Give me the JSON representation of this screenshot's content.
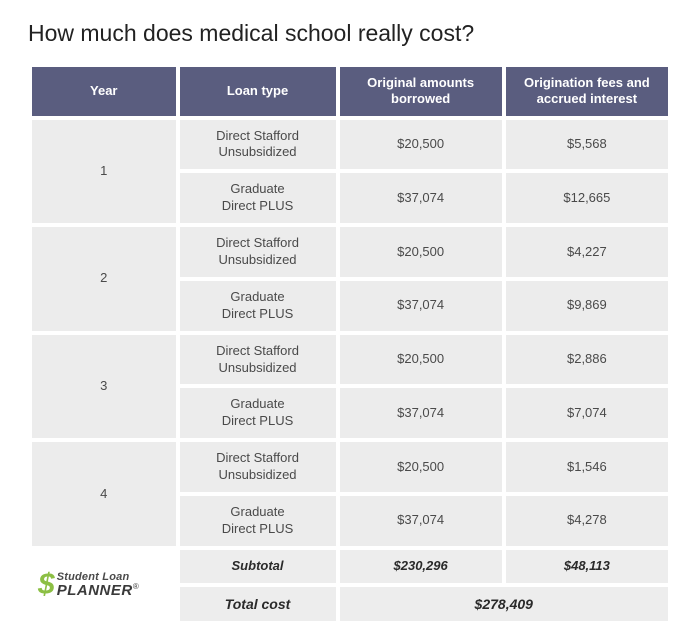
{
  "title": "How much does medical school really cost?",
  "colors": {
    "header_bg": "#5a5d7f",
    "header_text": "#ffffff",
    "cell_bg": "#ececec",
    "cell_text": "#4a4a4a",
    "page_bg": "#ffffff",
    "logo_accent": "#8cbf44"
  },
  "columns": [
    "Year",
    "Loan type",
    "Original amounts borrowed",
    "Origination fees and accrued interest"
  ],
  "years": [
    {
      "year": "1",
      "rows": [
        {
          "loan_type_l1": "Direct Stafford",
          "loan_type_l2": "Unsubsidized",
          "borrowed": "$20,500",
          "fees": "$5,568"
        },
        {
          "loan_type_l1": "Graduate",
          "loan_type_l2": "Direct PLUS",
          "borrowed": "$37,074",
          "fees": "$12,665"
        }
      ]
    },
    {
      "year": "2",
      "rows": [
        {
          "loan_type_l1": "Direct Stafford",
          "loan_type_l2": "Unsubsidized",
          "borrowed": "$20,500",
          "fees": "$4,227"
        },
        {
          "loan_type_l1": "Graduate",
          "loan_type_l2": "Direct PLUS",
          "borrowed": "$37,074",
          "fees": "$9,869"
        }
      ]
    },
    {
      "year": "3",
      "rows": [
        {
          "loan_type_l1": "Direct Stafford",
          "loan_type_l2": "Unsubsidized",
          "borrowed": "$20,500",
          "fees": "$2,886"
        },
        {
          "loan_type_l1": "Graduate",
          "loan_type_l2": "Direct PLUS",
          "borrowed": "$37,074",
          "fees": "$7,074"
        }
      ]
    },
    {
      "year": "4",
      "rows": [
        {
          "loan_type_l1": "Direct Stafford",
          "loan_type_l2": "Unsubsidized",
          "borrowed": "$20,500",
          "fees": "$1,546"
        },
        {
          "loan_type_l1": "Graduate",
          "loan_type_l2": "Direct PLUS",
          "borrowed": "$37,074",
          "fees": "$4,278"
        }
      ]
    }
  ],
  "subtotal": {
    "label": "Subtotal",
    "borrowed": "$230,296",
    "fees": "$48,113"
  },
  "total": {
    "label": "Total cost",
    "value": "$278,409"
  },
  "logo": {
    "symbol": "$",
    "top": "Student Loan",
    "bottom": "PLANNER",
    "mark": "®"
  }
}
